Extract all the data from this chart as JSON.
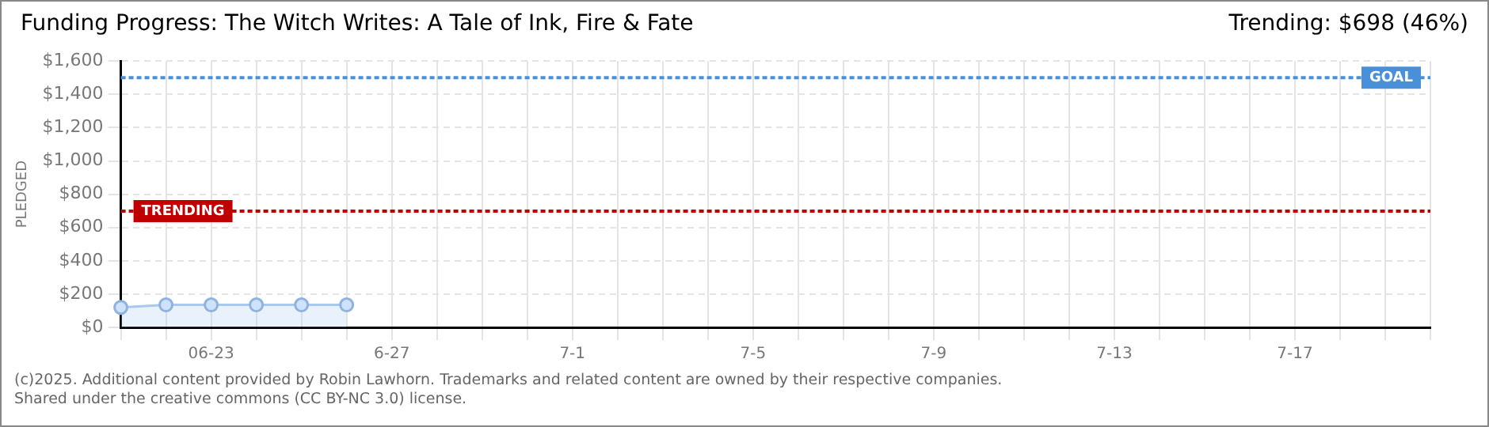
{
  "chart_data": {
    "type": "area",
    "title": "Funding Progress: The Witch Writes: A Tale of Ink, Fire & Fate",
    "subtitle": "Trending: $698 (46%)",
    "ylabel": "PLEDGED",
    "categories": [
      null,
      null,
      "06-23",
      null,
      null,
      null,
      "6-27",
      null,
      null,
      null,
      "7-1",
      null,
      null,
      null,
      "7-5",
      null,
      null,
      null,
      "7-9",
      null,
      null,
      null,
      "7-13",
      null,
      null,
      null,
      "7-17",
      null,
      null,
      null
    ],
    "series": [
      {
        "color": "#a9c8ee",
        "values": [
          120,
          135,
          135,
          135,
          135,
          135,
          null,
          null,
          null,
          null,
          null,
          null,
          null,
          null,
          null,
          null,
          null,
          null,
          null,
          null,
          null,
          null,
          null,
          null,
          null,
          null,
          null,
          null,
          null,
          null
        ]
      }
    ],
    "ylim": [
      0,
      1600
    ],
    "yticks": [
      {
        "value": 0,
        "label": "$0"
      },
      {
        "value": 200,
        "label": "$200"
      },
      {
        "value": 400,
        "label": "$400"
      },
      {
        "value": 600,
        "label": "$600"
      },
      {
        "value": 800,
        "label": "$800"
      },
      {
        "value": 1000,
        "label": "$1,000"
      },
      {
        "value": 1200,
        "label": "$1,200"
      },
      {
        "value": 1400,
        "label": "$1,400"
      },
      {
        "value": 1600,
        "label": "$1,600"
      }
    ],
    "ref_lines": [
      {
        "axis": "y",
        "value": 1500,
        "label": "GOAL",
        "color": "#4a90d9",
        "line_style": "dotted"
      },
      {
        "axis": "y",
        "value": 698,
        "label": "TRENDING",
        "color": "#c00000",
        "line_style": "dotted"
      }
    ],
    "grid": true,
    "legend": false,
    "marker": "circle",
    "line_style": "solid",
    "annotations": [
      "(c)2025. Additional content provided by Robin Lawhorn. Trademarks and related content are owned by their respective companies.",
      "Shared under the creative commons (CC BY-NC 3.0) license."
    ]
  }
}
